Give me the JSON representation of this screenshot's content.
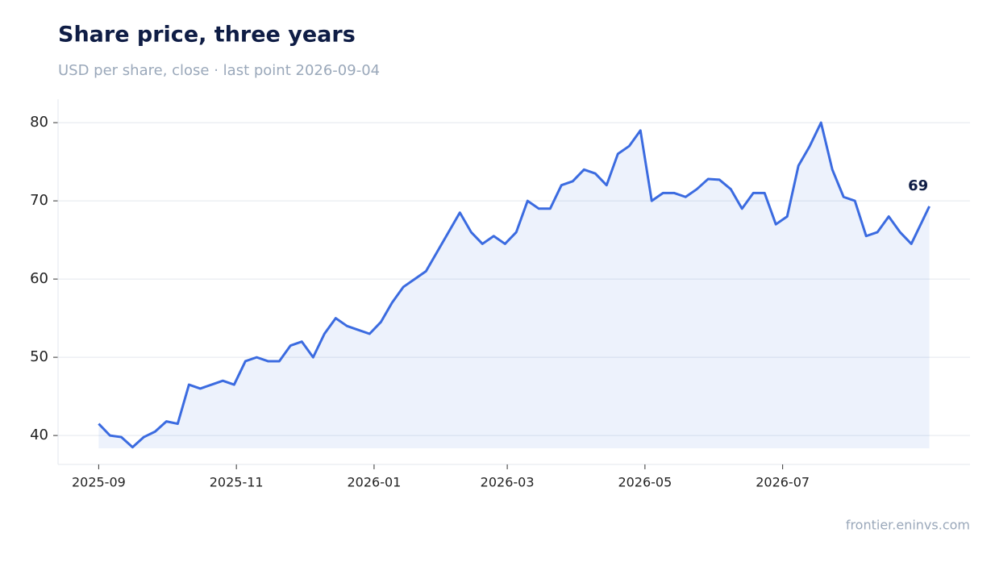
{
  "chart_data": {
    "type": "line",
    "title": "Share price, three years",
    "subtitle": "USD per share, close · last point 2026-09-04",
    "source": "frontier.eninvs.com",
    "x": [
      "2025-09-01",
      "2025-09-06",
      "2025-09-11",
      "2025-09-16",
      "2025-09-21",
      "2025-09-26",
      "2025-10-01",
      "2025-10-06",
      "2025-10-11",
      "2025-10-16",
      "2025-10-21",
      "2025-10-26",
      "2025-10-31",
      "2025-11-05",
      "2025-11-10",
      "2025-11-15",
      "2025-11-20",
      "2025-11-25",
      "2025-11-30",
      "2025-12-05",
      "2025-12-10",
      "2025-12-15",
      "2025-12-20",
      "2025-12-25",
      "2025-12-30",
      "2026-01-04",
      "2026-01-09",
      "2026-01-14",
      "2026-01-19",
      "2026-01-24",
      "2026-01-29",
      "2026-02-03",
      "2026-02-08",
      "2026-02-13",
      "2026-02-18",
      "2026-02-23",
      "2026-02-28",
      "2026-03-05",
      "2026-03-10",
      "2026-03-15",
      "2026-03-20",
      "2026-03-25",
      "2026-03-30",
      "2026-04-04",
      "2026-04-09",
      "2026-04-14",
      "2026-04-19",
      "2026-04-24",
      "2026-04-29",
      "2026-05-04",
      "2026-05-09",
      "2026-05-14",
      "2026-05-19",
      "2026-05-24",
      "2026-05-29",
      "2026-06-03",
      "2026-06-08",
      "2026-06-13",
      "2026-06-18",
      "2026-06-23",
      "2026-06-28",
      "2026-07-03",
      "2026-07-08",
      "2026-07-13",
      "2026-07-18",
      "2026-07-23",
      "2026-07-28",
      "2026-08-02",
      "2026-08-07",
      "2026-08-12",
      "2026-08-17",
      "2026-08-22",
      "2026-08-27",
      "2026-09-04"
    ],
    "series": [
      {
        "name": "Close",
        "color": "#3b6be0",
        "values": [
          41.5,
          40.0,
          39.8,
          38.5,
          39.8,
          40.5,
          41.8,
          41.5,
          46.5,
          46.0,
          46.5,
          47.0,
          46.5,
          49.5,
          50.0,
          49.5,
          49.5,
          51.5,
          52.0,
          50.0,
          53.0,
          55.0,
          54.0,
          53.5,
          53.0,
          54.5,
          57.0,
          59.0,
          60.0,
          61.0,
          63.5,
          66.0,
          68.5,
          66.0,
          64.5,
          65.5,
          64.5,
          66.0,
          70.0,
          69.0,
          69.0,
          72.0,
          72.5,
          74.0,
          73.5,
          72.0,
          76.0,
          77.0,
          79.0,
          70.0,
          71.0,
          71.0,
          70.5,
          71.5,
          72.8,
          72.7,
          71.5,
          69.0,
          71.0,
          71.0,
          67.0,
          68.0,
          74.5,
          77.0,
          80.0,
          74.0,
          70.5,
          70.0,
          65.5,
          66.0,
          68.0,
          66.0,
          64.5,
          69.3
        ],
        "end_label": "69"
      }
    ],
    "xlim": [
      "2025-08-14",
      "2026-09-22"
    ],
    "xticks": [
      {
        "value": "2025-09-01",
        "label": "2025-09"
      },
      {
        "value": "2025-11-01",
        "label": "2025-11"
      },
      {
        "value": "2026-01-01",
        "label": "2026-01"
      },
      {
        "value": "2026-03-01",
        "label": "2026-03"
      },
      {
        "value": "2026-05-01",
        "label": "2026-05"
      },
      {
        "value": "2026-07-01",
        "label": "2026-07"
      }
    ],
    "ylim": [
      36.3,
      83
    ],
    "yticks": [
      40,
      50,
      60,
      70,
      80
    ],
    "grid": true
  }
}
